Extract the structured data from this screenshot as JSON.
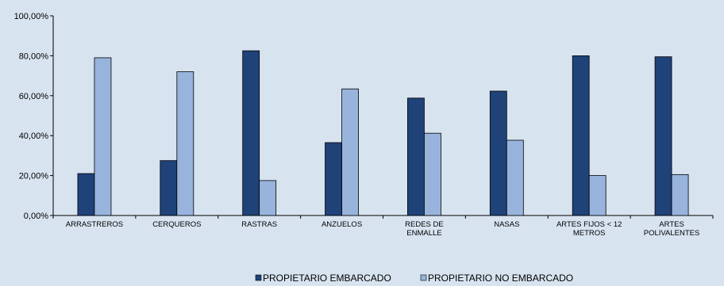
{
  "chart_data": {
    "type": "bar",
    "categories": [
      [
        "ARRASTREROS"
      ],
      [
        "CERQUEROS"
      ],
      [
        "RASTRAS"
      ],
      [
        "ANZUELOS"
      ],
      [
        "REDES DE",
        "ENMALLE"
      ],
      [
        "NASAS"
      ],
      [
        "ARTES FIJOS < 12",
        "METROS"
      ],
      [
        "ARTES",
        "POLIVALENTES"
      ]
    ],
    "series": [
      {
        "name": "PROPIETARIO EMBARCADO",
        "color": "#1f4279",
        "values": [
          21.0,
          27.5,
          82.5,
          36.5,
          58.8,
          62.3,
          80.0,
          79.5
        ]
      },
      {
        "name": "PROPIETARIO NO EMBARCADO",
        "color": "#98b4dc",
        "values": [
          79.0,
          72.0,
          17.5,
          63.4,
          41.2,
          37.7,
          20.0,
          20.5
        ]
      }
    ],
    "ylim": [
      0,
      100
    ],
    "yticks": [
      "0,00%",
      "20,00%",
      "40,00%",
      "60,00%",
      "80,00%",
      "100,00%"
    ],
    "grid": false,
    "legend_position": "bottom-center",
    "background": "#d7e4f0"
  }
}
